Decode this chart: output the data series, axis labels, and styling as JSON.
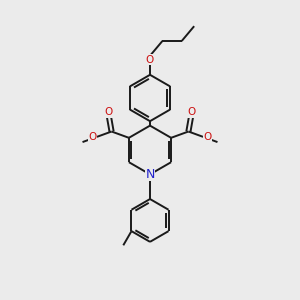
{
  "background_color": "#ebebeb",
  "bond_color": "#1a1a1a",
  "n_color": "#2020cc",
  "o_color": "#cc1010",
  "bond_width": 1.4,
  "font_size": 7.5,
  "fig_size": [
    3.0,
    3.0
  ],
  "dpi": 100,
  "xlim": [
    0,
    10
  ],
  "ylim": [
    0,
    10
  ]
}
